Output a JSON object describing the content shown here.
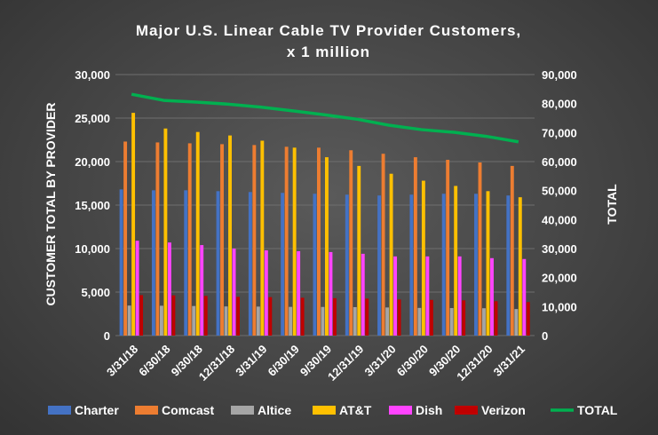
{
  "chart_data": {
    "type": "bar",
    "title_line1": "Major U.S. Linear Cable TV Provider Customers,",
    "title_line2": "x 1 million",
    "ylabel": "CUSTOMER TOTAL BY PROVIDER",
    "y2label": "TOTAL",
    "ylim": [
      0,
      30000
    ],
    "y2lim": [
      0,
      90000
    ],
    "yticks": [
      "0",
      "5,000",
      "10,000",
      "15,000",
      "20,000",
      "25,000",
      "30,000"
    ],
    "y2ticks": [
      "0",
      "10,000",
      "20,000",
      "30,000",
      "40,000",
      "50,000",
      "60,000",
      "70,000",
      "80,000",
      "90,000"
    ],
    "grid": true,
    "legend_position": "bottom",
    "categories": [
      "3/31/18",
      "6/30/18",
      "9/30/18",
      "12/31/18",
      "3/31/19",
      "6/30/19",
      "9/30/19",
      "12/31/19",
      "3/31/20",
      "6/30/20",
      "9/30/20",
      "12/31/20",
      "3/31/21"
    ],
    "series": [
      {
        "name": "Charter",
        "color": "#4472c4",
        "values": [
          16800,
          16700,
          16700,
          16600,
          16500,
          16400,
          16300,
          16200,
          16100,
          16200,
          16300,
          16300,
          16100
        ]
      },
      {
        "name": "Comcast",
        "color": "#ed7d31",
        "values": [
          22300,
          22200,
          22100,
          22000,
          21900,
          21700,
          21600,
          21300,
          20900,
          20500,
          20200,
          19900,
          19500
        ]
      },
      {
        "name": "Altice",
        "color": "#a5a5a5",
        "values": [
          3450,
          3430,
          3400,
          3350,
          3330,
          3300,
          3290,
          3270,
          3230,
          3180,
          3160,
          3140,
          3050
        ]
      },
      {
        "name": "AT&T",
        "color": "#ffc000",
        "values": [
          25600,
          23800,
          23400,
          23000,
          22400,
          21600,
          20500,
          19500,
          18600,
          17800,
          17200,
          16600,
          15900
        ]
      },
      {
        "name": "Dish",
        "color": "#ff44ff",
        "values": [
          10900,
          10700,
          10400,
          10000,
          9800,
          9700,
          9600,
          9400,
          9100,
          9100,
          9100,
          8900,
          8800
        ]
      },
      {
        "name": "Verizon",
        "color": "#c00000",
        "values": [
          4650,
          4620,
          4560,
          4450,
          4420,
          4350,
          4300,
          4250,
          4150,
          4100,
          4050,
          3950,
          3850
        ]
      }
    ],
    "line_series": {
      "name": "TOTAL",
      "color": "#00b050",
      "axis": "right",
      "values": [
        83200,
        81100,
        80500,
        79800,
        78800,
        77500,
        76100,
        74600,
        72500,
        71000,
        70100,
        68700,
        66800
      ]
    }
  }
}
